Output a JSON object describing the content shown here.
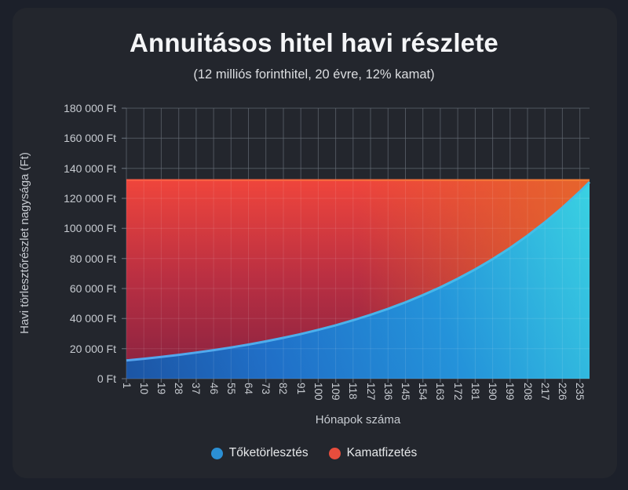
{
  "chart_data": {
    "type": "area",
    "stacked": true,
    "title": "Annuitásos hitel havi részlete",
    "subtitle": "(12 milliós forinthitel, 20 évre, 12% kamat)",
    "xlabel": "Hónapok száma",
    "ylabel": "Havi törlesztőrészlet nagysága (Ft)",
    "ylim": [
      0,
      180000
    ],
    "ytick_step": 20000,
    "ytick_labels": [
      "0 Ft",
      "20 000 Ft",
      "40 000 Ft",
      "60 000 Ft",
      "80 000 Ft",
      "100 000 Ft",
      "120 000 Ft",
      "140 000 Ft",
      "160 000 Ft",
      "180 000 Ft"
    ],
    "x_ticks": [
      1,
      10,
      19,
      28,
      37,
      46,
      55,
      64,
      73,
      82,
      91,
      100,
      109,
      118,
      127,
      136,
      145,
      154,
      163,
      172,
      181,
      190,
      199,
      208,
      217,
      226,
      235
    ],
    "x_full_range": [
      1,
      240
    ],
    "months": [
      1,
      10,
      19,
      28,
      37,
      46,
      55,
      64,
      73,
      82,
      91,
      100,
      109,
      118,
      127,
      136,
      145,
      154,
      163,
      172,
      181,
      190,
      199,
      208,
      217,
      226,
      235,
      240
    ],
    "total_monthly_payment": 132131,
    "series": [
      {
        "name": "Tőketörlesztés",
        "role": "principal",
        "color": "#2b8fd4",
        "values": [
          12131,
          13268,
          14510,
          15870,
          17357,
          18983,
          20761,
          22706,
          24833,
          27160,
          29704,
          32487,
          35531,
          38860,
          42500,
          46480,
          50835,
          55598,
          60808,
          66504,
          72737,
          79551,
          87005,
          95154,
          104067,
          113817,
          124480,
          130828
        ]
      },
      {
        "name": "Kamatfizetés",
        "role": "interest",
        "color": "#e84d3d",
        "values": [
          120000,
          118863,
          117621,
          116261,
          114774,
          113148,
          111370,
          109425,
          107298,
          104971,
          102427,
          99644,
          96600,
          93271,
          89631,
          85651,
          81296,
          76533,
          71323,
          65627,
          59394,
          52580,
          45126,
          36977,
          28064,
          18314,
          7651,
          1303
        ]
      }
    ],
    "legend_position": "bottom",
    "grid": true
  },
  "legend": {
    "items": [
      {
        "label": "Tőketörlesztés",
        "color": "#2b8fd4"
      },
      {
        "label": "Kamatfizetés",
        "color": "#e84d3d"
      }
    ]
  },
  "colors": {
    "page_bg": "#1c202a",
    "card_bg": "#23262d",
    "grid_line": "#3c424c",
    "tick_mark": "#5c636d",
    "label_text": "#c7cbd1",
    "title_text": "#f4f5f7",
    "red_top_left": "#ef453c",
    "red_top_right": "#e5662b",
    "red_bottom": "#872240",
    "blue_top_right": "#3ad2e2",
    "blue_bottom_left": "#1c55a4",
    "blue_edge_stroke": "#55a4ee",
    "red_edge_stroke": "#f85a45"
  }
}
